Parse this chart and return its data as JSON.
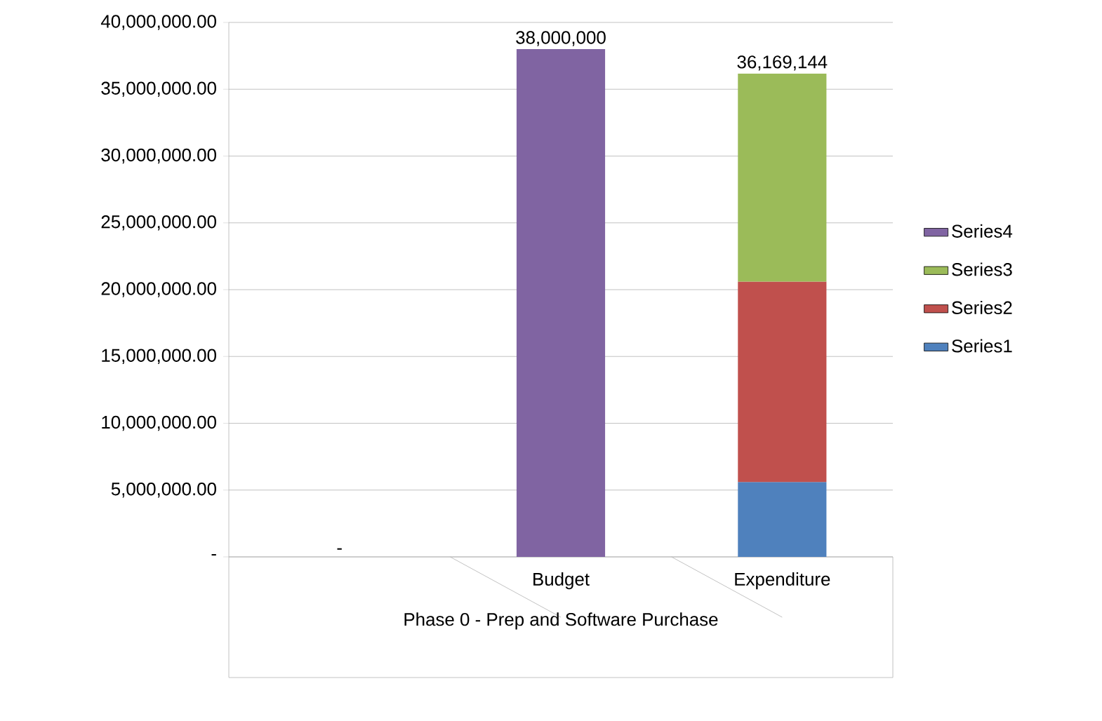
{
  "chart_data": {
    "type": "bar",
    "stacked": true,
    "categories": [
      null,
      "Budget",
      "Expenditure"
    ],
    "xlabel": "Phase 0 - Prep and Software Purchase",
    "series": [
      {
        "name": "Series1",
        "color": "#4f81bd",
        "values": [
          null,
          null,
          5600000
        ]
      },
      {
        "name": "Series2",
        "color": "#c0504d",
        "values": [
          null,
          null,
          15000000
        ]
      },
      {
        "name": "Series3",
        "color": "#9bbb59",
        "values": [
          null,
          null,
          15569144
        ]
      },
      {
        "name": "Series4",
        "color": "#8064a2",
        "values": [
          null,
          38000000,
          null
        ]
      }
    ],
    "totals": [
      "-",
      "38,000,000",
      "36,169,144"
    ],
    "ylim": [
      0,
      40000000
    ],
    "yticks": [
      {
        "value": 0,
        "label": "-"
      },
      {
        "value": 5000000,
        "label": "5,000,000.00"
      },
      {
        "value": 10000000,
        "label": "10,000,000.00"
      },
      {
        "value": 15000000,
        "label": "15,000,000.00"
      },
      {
        "value": 20000000,
        "label": "20,000,000.00"
      },
      {
        "value": 25000000,
        "label": "25,000,000.00"
      },
      {
        "value": 30000000,
        "label": "30,000,000.00"
      },
      {
        "value": 35000000,
        "label": "35,000,000.00"
      },
      {
        "value": 40000000,
        "label": "40,000,000.00"
      }
    ],
    "grid": "y",
    "legend": "right"
  }
}
